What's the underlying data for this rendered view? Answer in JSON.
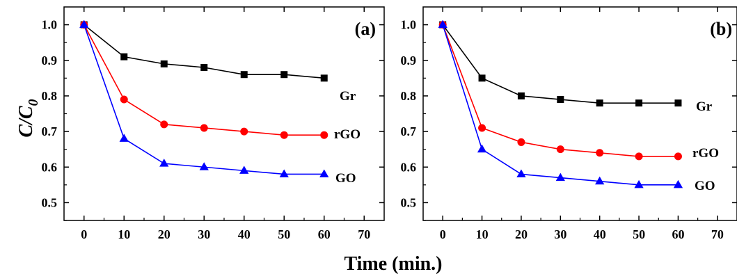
{
  "figure": {
    "xlabel": "Time (min.)",
    "ylabel_main": "C/C",
    "ylabel_sub": "0"
  },
  "chart_data": [
    {
      "type": "line",
      "panel_label": "(a)",
      "xlim": [
        -5,
        75
      ],
      "ylim": [
        0.45,
        1.05
      ],
      "xticks": [
        0,
        10,
        20,
        30,
        40,
        50,
        60,
        70
      ],
      "yticks": [
        0.5,
        0.6,
        0.7,
        0.8,
        0.9,
        1.0
      ],
      "xtick_labels": [
        "0",
        "10",
        "20",
        "30",
        "40",
        "50",
        "60",
        "70"
      ],
      "ytick_labels": [
        "0.5",
        "0.6",
        "0.7",
        "0.8",
        "0.9",
        "1.0"
      ],
      "grid": false,
      "x": [
        0,
        10,
        20,
        30,
        40,
        50,
        60
      ],
      "series": [
        {
          "name": "Gr",
          "color": "#000000",
          "marker": "square",
          "values": [
            1.0,
            0.91,
            0.89,
            0.88,
            0.86,
            0.86,
            0.85
          ]
        },
        {
          "name": "rGO",
          "color": "#ff0000",
          "marker": "circle",
          "values": [
            1.0,
            0.79,
            0.72,
            0.71,
            0.7,
            0.69,
            0.69
          ]
        },
        {
          "name": "GO",
          "color": "#0000ff",
          "marker": "triangle",
          "values": [
            1.0,
            0.68,
            0.61,
            0.6,
            0.59,
            0.58,
            0.58
          ]
        }
      ]
    },
    {
      "type": "line",
      "panel_label": "(b)",
      "xlim": [
        -5,
        75
      ],
      "ylim": [
        0.45,
        1.05
      ],
      "xticks": [
        0,
        10,
        20,
        30,
        40,
        50,
        60,
        70
      ],
      "yticks": [
        0.5,
        0.6,
        0.7,
        0.8,
        0.9,
        1.0
      ],
      "xtick_labels": [
        "0",
        "10",
        "20",
        "30",
        "40",
        "50",
        "60",
        "70"
      ],
      "ytick_labels": [
        "0.5",
        "0.6",
        "0.7",
        "0.8",
        "0.9",
        "1.0"
      ],
      "grid": false,
      "x": [
        0,
        10,
        20,
        30,
        40,
        50,
        60
      ],
      "series": [
        {
          "name": "Gr",
          "color": "#000000",
          "marker": "square",
          "values": [
            1.0,
            0.85,
            0.8,
            0.79,
            0.78,
            0.78,
            0.78
          ]
        },
        {
          "name": "rGO",
          "color": "#ff0000",
          "marker": "circle",
          "values": [
            1.0,
            0.71,
            0.67,
            0.65,
            0.64,
            0.63,
            0.63
          ]
        },
        {
          "name": "GO",
          "color": "#0000ff",
          "marker": "triangle",
          "values": [
            1.0,
            0.65,
            0.58,
            0.57,
            0.56,
            0.55,
            0.55
          ]
        }
      ]
    }
  ]
}
